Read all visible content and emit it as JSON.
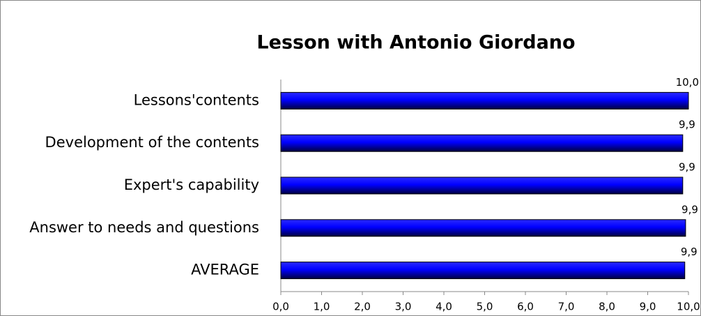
{
  "chart_data": {
    "type": "bar",
    "orientation": "horizontal",
    "title": "Lesson with Antonio Giordano",
    "categories": [
      "Lessons'contents",
      "Development of the contents",
      "Expert's capability",
      "Answer to needs and questions",
      "AVERAGE"
    ],
    "values": [
      10.0,
      9.86,
      9.86,
      9.93,
      9.91
    ],
    "value_labels": [
      "10,0",
      "9,9",
      "9,9",
      "9,9",
      "9,9"
    ],
    "color": "#0000ff",
    "xlim": [
      0,
      10
    ],
    "xticks": [
      {
        "value": 0,
        "label": "0,0"
      },
      {
        "value": 1,
        "label": "1,0"
      },
      {
        "value": 2,
        "label": "2,0"
      },
      {
        "value": 3,
        "label": "3,0"
      },
      {
        "value": 4,
        "label": "4,0"
      },
      {
        "value": 5,
        "label": "5,0"
      },
      {
        "value": 6,
        "label": "6,0"
      },
      {
        "value": 7,
        "label": "7,0"
      },
      {
        "value": 8,
        "label": "8,0"
      },
      {
        "value": 9,
        "label": "9,0"
      },
      {
        "value": 10,
        "label": "10,0"
      }
    ],
    "grid": false
  }
}
